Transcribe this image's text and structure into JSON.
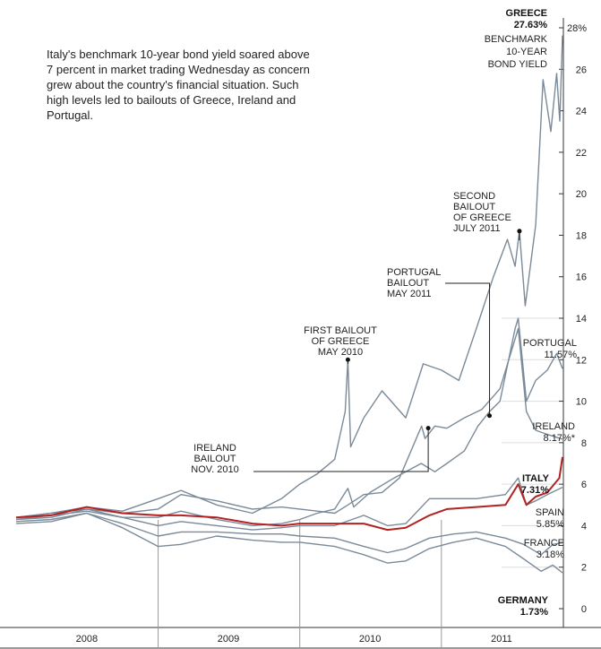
{
  "intro": "Italy's benchmark 10-year bond yield soared above 7 percent in market trading Wednesday as concern grew about the country's financial situation. Such high levels led to bailouts of Greece, Ireland and Portugal.",
  "chart_data": {
    "type": "line",
    "xlim": [
      "2008-01-01",
      "2011-11-09"
    ],
    "ylim": [
      0,
      28
    ],
    "unit": "%",
    "x_tick_labels": [
      "2008",
      "2009",
      "2010",
      "2011"
    ],
    "y_ticks": [
      0,
      2,
      4,
      6,
      8,
      10,
      12,
      14,
      16,
      18,
      20,
      22,
      24,
      26,
      28
    ],
    "y_tick_labels": [
      "0",
      "2",
      "4",
      "6",
      "8",
      "10",
      "12",
      "14",
      "16",
      "18",
      "20",
      "22",
      "24",
      "26",
      "28%"
    ],
    "grid": false,
    "accent_color": "#b22222",
    "series_color": "#7a8a99",
    "series": [
      {
        "name": "GREECE",
        "value_label": "27.63%",
        "extra_label": [
          "BENCHMARK",
          "10-YEAR",
          "BOND YIELD"
        ],
        "end_value": 27.63,
        "color": "#7a8a99",
        "highlight": false,
        "points": [
          [
            "2008-01-01",
            4.4
          ],
          [
            "2008-04-01",
            4.6
          ],
          [
            "2008-07-01",
            4.9
          ],
          [
            "2008-10-01",
            4.7
          ],
          [
            "2009-01-01",
            5.3
          ],
          [
            "2009-03-01",
            5.7
          ],
          [
            "2009-06-01",
            5.0
          ],
          [
            "2009-09-01",
            4.6
          ],
          [
            "2009-11-15",
            5.3
          ],
          [
            "2010-01-01",
            6.0
          ],
          [
            "2010-02-15",
            6.5
          ],
          [
            "2010-04-01",
            7.2
          ],
          [
            "2010-04-28",
            9.5
          ],
          [
            "2010-05-05",
            12.0
          ],
          [
            "2010-05-12",
            7.8
          ],
          [
            "2010-06-15",
            9.2
          ],
          [
            "2010-08-01",
            10.5
          ],
          [
            "2010-10-01",
            9.2
          ],
          [
            "2010-11-15",
            11.8
          ],
          [
            "2011-01-01",
            11.5
          ],
          [
            "2011-02-15",
            11.0
          ],
          [
            "2011-04-01",
            13.5
          ],
          [
            "2011-05-15",
            16.0
          ],
          [
            "2011-06-20",
            17.8
          ],
          [
            "2011-07-10",
            16.5
          ],
          [
            "2011-07-21",
            18.2
          ],
          [
            "2011-08-05",
            14.6
          ],
          [
            "2011-09-01",
            18.5
          ],
          [
            "2011-09-20",
            25.5
          ],
          [
            "2011-10-10",
            23.0
          ],
          [
            "2011-10-25",
            25.8
          ],
          [
            "2011-11-02",
            23.5
          ],
          [
            "2011-11-09",
            27.63
          ]
        ]
      },
      {
        "name": "PORTUGAL",
        "value_label": "11.57%",
        "end_value": 11.57,
        "color": "#7a8a99",
        "highlight": false,
        "points": [
          [
            "2008-01-01",
            4.3
          ],
          [
            "2008-04-01",
            4.5
          ],
          [
            "2008-07-01",
            4.7
          ],
          [
            "2008-10-01",
            4.4
          ],
          [
            "2009-01-01",
            4.4
          ],
          [
            "2009-03-01",
            4.7
          ],
          [
            "2009-06-01",
            4.3
          ],
          [
            "2009-09-01",
            4.0
          ],
          [
            "2009-11-15",
            4.1
          ],
          [
            "2010-01-01",
            4.3
          ],
          [
            "2010-02-15",
            4.6
          ],
          [
            "2010-04-01",
            4.8
          ],
          [
            "2010-05-05",
            5.8
          ],
          [
            "2010-05-20",
            4.9
          ],
          [
            "2010-07-01",
            5.6
          ],
          [
            "2010-09-01",
            6.3
          ],
          [
            "2010-11-10",
            7.0
          ],
          [
            "2010-12-15",
            6.6
          ],
          [
            "2011-01-15",
            7.0
          ],
          [
            "2011-03-01",
            7.6
          ],
          [
            "2011-04-05",
            8.8
          ],
          [
            "2011-05-05",
            9.5
          ],
          [
            "2011-06-01",
            10.0
          ],
          [
            "2011-07-10",
            13.5
          ],
          [
            "2011-07-18",
            14.0
          ],
          [
            "2011-08-08",
            10.0
          ],
          [
            "2011-09-01",
            11.0
          ],
          [
            "2011-10-01",
            11.5
          ],
          [
            "2011-10-25",
            12.3
          ],
          [
            "2011-11-09",
            11.57
          ]
        ]
      },
      {
        "name": "IRELAND",
        "value_label": "8.17%*",
        "end_value": 8.17,
        "color": "#7a8a99",
        "highlight": false,
        "points": [
          [
            "2008-01-01",
            4.4
          ],
          [
            "2008-04-01",
            4.6
          ],
          [
            "2008-07-01",
            4.8
          ],
          [
            "2008-10-01",
            4.6
          ],
          [
            "2009-01-01",
            4.8
          ],
          [
            "2009-03-01",
            5.5
          ],
          [
            "2009-06-01",
            5.2
          ],
          [
            "2009-09-01",
            4.8
          ],
          [
            "2009-11-15",
            4.9
          ],
          [
            "2010-01-01",
            4.8
          ],
          [
            "2010-02-15",
            4.7
          ],
          [
            "2010-04-01",
            4.6
          ],
          [
            "2010-05-05",
            5.0
          ],
          [
            "2010-06-15",
            5.5
          ],
          [
            "2010-08-01",
            5.6
          ],
          [
            "2010-09-15",
            6.3
          ],
          [
            "2010-11-11",
            8.8
          ],
          [
            "2010-11-20",
            8.2
          ],
          [
            "2010-12-15",
            8.8
          ],
          [
            "2011-01-15",
            8.7
          ],
          [
            "2011-03-01",
            9.2
          ],
          [
            "2011-04-15",
            9.6
          ],
          [
            "2011-06-01",
            10.6
          ],
          [
            "2011-07-18",
            13.5
          ],
          [
            "2011-08-08",
            9.5
          ],
          [
            "2011-09-01",
            8.6
          ],
          [
            "2011-10-01",
            8.4
          ],
          [
            "2011-11-09",
            8.17
          ]
        ]
      },
      {
        "name": "ITALY",
        "value_label": "7.31%",
        "end_value": 7.31,
        "color": "#b22222",
        "highlight": true,
        "points": [
          [
            "2008-01-01",
            4.4
          ],
          [
            "2008-04-01",
            4.5
          ],
          [
            "2008-07-01",
            4.9
          ],
          [
            "2008-10-01",
            4.6
          ],
          [
            "2009-01-01",
            4.5
          ],
          [
            "2009-03-01",
            4.5
          ],
          [
            "2009-06-01",
            4.4
          ],
          [
            "2009-09-01",
            4.1
          ],
          [
            "2009-11-15",
            4.0
          ],
          [
            "2010-01-01",
            4.1
          ],
          [
            "2010-04-01",
            4.1
          ],
          [
            "2010-06-15",
            4.1
          ],
          [
            "2010-08-15",
            3.8
          ],
          [
            "2010-10-01",
            3.9
          ],
          [
            "2010-12-01",
            4.5
          ],
          [
            "2011-01-15",
            4.8
          ],
          [
            "2011-04-01",
            4.9
          ],
          [
            "2011-06-15",
            5.0
          ],
          [
            "2011-07-18",
            6.0
          ],
          [
            "2011-08-08",
            5.0
          ],
          [
            "2011-09-01",
            5.4
          ],
          [
            "2011-10-01",
            5.6
          ],
          [
            "2011-11-01",
            6.3
          ],
          [
            "2011-11-09",
            7.31
          ]
        ]
      },
      {
        "name": "SPAIN",
        "value_label": "5.85%",
        "end_value": 5.85,
        "color": "#7a8a99",
        "highlight": false,
        "points": [
          [
            "2008-01-01",
            4.3
          ],
          [
            "2008-04-01",
            4.4
          ],
          [
            "2008-07-01",
            4.8
          ],
          [
            "2008-10-01",
            4.4
          ],
          [
            "2009-01-01",
            4.0
          ],
          [
            "2009-03-01",
            4.2
          ],
          [
            "2009-06-01",
            4.0
          ],
          [
            "2009-09-01",
            3.8
          ],
          [
            "2009-11-15",
            3.9
          ],
          [
            "2010-01-01",
            4.0
          ],
          [
            "2010-04-01",
            4.0
          ],
          [
            "2010-06-15",
            4.5
          ],
          [
            "2010-08-15",
            4.0
          ],
          [
            "2010-10-01",
            4.1
          ],
          [
            "2010-12-01",
            5.3
          ],
          [
            "2011-01-15",
            5.3
          ],
          [
            "2011-04-01",
            5.3
          ],
          [
            "2011-06-15",
            5.5
          ],
          [
            "2011-07-18",
            6.3
          ],
          [
            "2011-08-08",
            5.0
          ],
          [
            "2011-09-01",
            5.2
          ],
          [
            "2011-10-01",
            5.5
          ],
          [
            "2011-11-09",
            5.85
          ]
        ]
      },
      {
        "name": "FRANCE",
        "value_label": "3.18%",
        "end_value": 3.18,
        "color": "#7a8a99",
        "highlight": false,
        "points": [
          [
            "2008-01-01",
            4.2
          ],
          [
            "2008-04-01",
            4.3
          ],
          [
            "2008-07-01",
            4.6
          ],
          [
            "2008-10-01",
            4.1
          ],
          [
            "2009-01-01",
            3.5
          ],
          [
            "2009-03-01",
            3.7
          ],
          [
            "2009-06-01",
            3.7
          ],
          [
            "2009-09-01",
            3.6
          ],
          [
            "2009-11-15",
            3.6
          ],
          [
            "2010-01-01",
            3.5
          ],
          [
            "2010-04-01",
            3.4
          ],
          [
            "2010-06-15",
            3.0
          ],
          [
            "2010-08-15",
            2.7
          ],
          [
            "2010-10-01",
            2.9
          ],
          [
            "2010-12-01",
            3.4
          ],
          [
            "2011-02-01",
            3.6
          ],
          [
            "2011-04-01",
            3.7
          ],
          [
            "2011-06-15",
            3.4
          ],
          [
            "2011-08-01",
            3.1
          ],
          [
            "2011-09-15",
            2.6
          ],
          [
            "2011-10-15",
            3.1
          ],
          [
            "2011-11-09",
            3.18
          ]
        ]
      },
      {
        "name": "GERMANY",
        "value_label": "1.73%",
        "end_value": 1.73,
        "color": "#7a8a99",
        "highlight": false,
        "points": [
          [
            "2008-01-01",
            4.1
          ],
          [
            "2008-04-01",
            4.2
          ],
          [
            "2008-07-01",
            4.6
          ],
          [
            "2008-10-01",
            3.9
          ],
          [
            "2009-01-01",
            3.0
          ],
          [
            "2009-03-01",
            3.1
          ],
          [
            "2009-06-01",
            3.5
          ],
          [
            "2009-09-01",
            3.3
          ],
          [
            "2009-11-15",
            3.2
          ],
          [
            "2010-01-01",
            3.2
          ],
          [
            "2010-04-01",
            3.0
          ],
          [
            "2010-06-15",
            2.6
          ],
          [
            "2010-08-15",
            2.2
          ],
          [
            "2010-10-01",
            2.3
          ],
          [
            "2010-12-01",
            2.9
          ],
          [
            "2011-02-01",
            3.2
          ],
          [
            "2011-04-01",
            3.4
          ],
          [
            "2011-06-15",
            3.0
          ],
          [
            "2011-08-01",
            2.4
          ],
          [
            "2011-09-15",
            1.8
          ],
          [
            "2011-10-15",
            2.1
          ],
          [
            "2011-11-09",
            1.73
          ]
        ]
      }
    ],
    "annotations": [
      {
        "lines": [
          "FIRST BAILOUT",
          "OF GREECE",
          "MAY 2010"
        ],
        "date": "2010-05-05",
        "value": 12.0
      },
      {
        "lines": [
          "IRELAND",
          "BAILOUT",
          "NOV. 2010"
        ],
        "date": "2010-11-28",
        "value": 8.7
      },
      {
        "lines": [
          "PORTUGAL",
          "BAILOUT",
          "MAY 2011"
        ],
        "date": "2011-05-05",
        "value": 9.3
      },
      {
        "lines": [
          "SECOND",
          "BAILOUT",
          "OF GREECE",
          "JULY 2011"
        ],
        "date": "2011-07-21",
        "value": 18.2
      }
    ]
  }
}
